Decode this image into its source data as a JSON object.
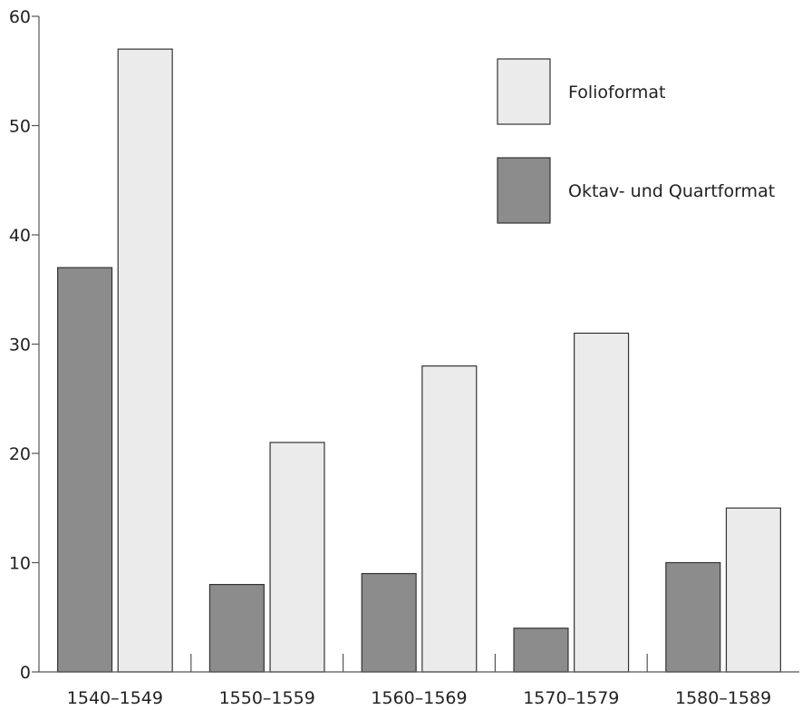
{
  "chart_data": {
    "type": "bar",
    "title": "",
    "xlabel": "",
    "ylabel": "",
    "categories": [
      "1540–1549",
      "1550–1559",
      "1560–1569",
      "1570–1579",
      "1580–1589"
    ],
    "series": [
      {
        "name": "Oktav- und Quartformat",
        "color": "#8c8c8c",
        "values": [
          37,
          8,
          9,
          4,
          10
        ]
      },
      {
        "name": "Folioformat",
        "color": "#ebebeb",
        "values": [
          57,
          21,
          28,
          31,
          15
        ]
      }
    ],
    "ylim": [
      0,
      60
    ],
    "yticks": [
      0,
      10,
      20,
      30,
      40,
      50,
      60
    ],
    "grid": false,
    "legend_placement": "top-right",
    "legend_order": [
      "Folioformat",
      "Oktav- und Quartformat"
    ]
  }
}
